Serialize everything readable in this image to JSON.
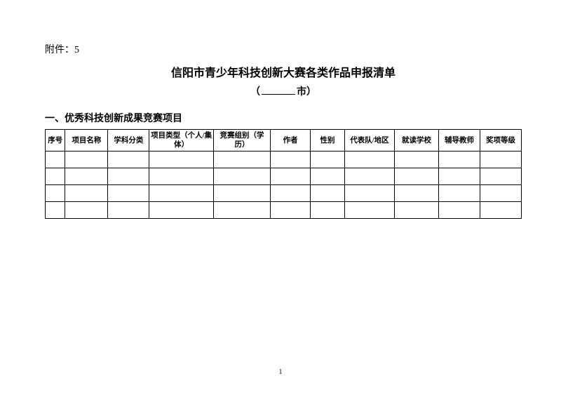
{
  "attachment": {
    "label": "附件：5"
  },
  "title": "信阳市青少年科技创新大赛各类作品申报清单",
  "subtitle": {
    "open": "（",
    "suffix": "市）"
  },
  "section": {
    "header": "一、优秀科技创新成果竞赛项目"
  },
  "table": {
    "columns": [
      "序号",
      "项目名称",
      "学科分类",
      "项目类型（个人/集体）",
      "竞赛组别（学历）",
      "作者",
      "性别",
      "代表队/地区",
      "就读学校",
      "辅导教师",
      "奖项等级"
    ],
    "rows": [
      [
        "",
        "",
        "",
        "",
        "",
        "",
        "",
        "",
        "",
        "",
        ""
      ],
      [
        "",
        "",
        "",
        "",
        "",
        "",
        "",
        "",
        "",
        "",
        ""
      ],
      [
        "",
        "",
        "",
        "",
        "",
        "",
        "",
        "",
        "",
        "",
        ""
      ],
      [
        "",
        "",
        "",
        "",
        "",
        "",
        "",
        "",
        "",
        "",
        ""
      ]
    ]
  },
  "page_number": "1"
}
